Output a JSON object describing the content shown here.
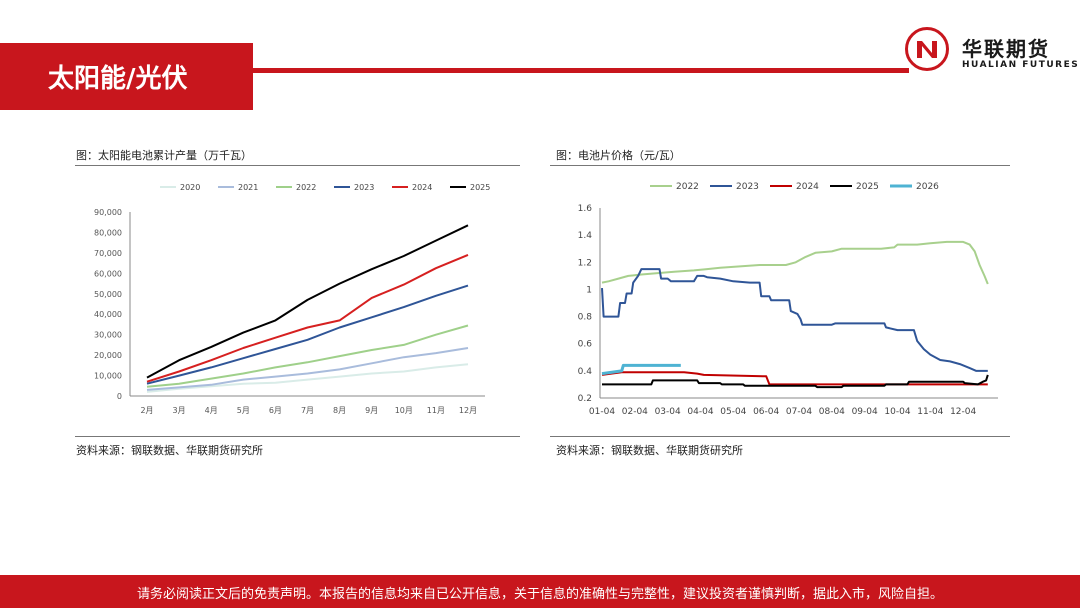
{
  "header": {
    "title": "太阳能/光伏",
    "logo_cn": "华联期货",
    "logo_en": "HUALIAN FUTURES",
    "logo_glyph": "N"
  },
  "left": {
    "title": "图：太阳能电池累计产量（万千瓦）",
    "source": "资料来源：钢联数据、华联期货研究所"
  },
  "right": {
    "title": "图：电池片价格（元/瓦）",
    "source": "资料来源：钢联数据、华联期货研究所"
  },
  "footer": {
    "disclaimer": "请务必阅读正文后的免责声明。本报告的信息均来自已公开信息，关于信息的准确性与完整性，建议投资者谨慎判断，据此入市，风险自担。"
  },
  "chart_data": [
    {
      "type": "line",
      "title": "图：太阳能电池累计产量（万千瓦）",
      "categories": [
        "2月",
        "3月",
        "4月",
        "5月",
        "6月",
        "7月",
        "8月",
        "9月",
        "10月",
        "11月",
        "12月"
      ],
      "ylim": [
        0,
        90000
      ],
      "yticks": [
        0,
        10000,
        20000,
        30000,
        40000,
        50000,
        60000,
        70000,
        80000,
        90000
      ],
      "ytick_labels": [
        "0",
        "10,000",
        "20,000",
        "30,000",
        "40,000",
        "50,000",
        "60,000",
        "70,000",
        "80,000",
        "90,000"
      ],
      "legend_position": "top",
      "series": [
        {
          "name": "2020",
          "color": "#d9ece8",
          "values": [
            2000,
            3500,
            4800,
            6000,
            6500,
            8000,
            9500,
            11000,
            12000,
            14000,
            15500
          ]
        },
        {
          "name": "2021",
          "color": "#a9bcdc",
          "values": [
            3000,
            4200,
            5500,
            8000,
            9500,
            11000,
            13000,
            16000,
            19000,
            21000,
            23500
          ]
        },
        {
          "name": "2022",
          "color": "#9fd08a",
          "values": [
            4500,
            6000,
            8500,
            11000,
            14000,
            16500,
            19500,
            22500,
            25000,
            30000,
            34500
          ]
        },
        {
          "name": "2023",
          "color": "#2f5597",
          "values": [
            6000,
            10000,
            14000,
            18500,
            23000,
            27500,
            33500,
            38500,
            43500,
            49000,
            54000
          ]
        },
        {
          "name": "2024",
          "color": "#d62020",
          "values": [
            7000,
            12000,
            17500,
            23500,
            28500,
            33500,
            37000,
            48000,
            54500,
            62500,
            69000
          ]
        },
        {
          "name": "2025",
          "color": "#000000",
          "values": [
            9000,
            17500,
            24000,
            31000,
            37000,
            47000,
            55000,
            62000,
            68500,
            76000,
            83500
          ]
        }
      ]
    },
    {
      "type": "line",
      "title": "图：电池片价格（元/瓦）",
      "x_categories": [
        "01-04",
        "02-04",
        "03-04",
        "04-04",
        "05-04",
        "06-04",
        "07-04",
        "08-04",
        "09-04",
        "10-04",
        "11-04",
        "12-04"
      ],
      "ylim": [
        0.2,
        1.6
      ],
      "yticks": [
        0.2,
        0.4,
        0.6,
        0.8,
        1.0,
        1.2,
        1.4,
        1.6
      ],
      "ytick_labels": [
        "0.2",
        "0.4",
        "0.6",
        "0.8",
        "1",
        "1.2",
        "1.4",
        "1.6"
      ],
      "legend_position": "top",
      "series": [
        {
          "name": "2022",
          "color": "#a8d08d",
          "points": [
            [
              0,
              1.05
            ],
            [
              0.2,
              1.06
            ],
            [
              0.5,
              1.08
            ],
            [
              0.8,
              1.1
            ],
            [
              1.2,
              1.11
            ],
            [
              1.7,
              1.12
            ],
            [
              2.2,
              1.13
            ],
            [
              2.8,
              1.14
            ],
            [
              3.2,
              1.15
            ],
            [
              3.6,
              1.16
            ],
            [
              4.2,
              1.17
            ],
            [
              4.8,
              1.18
            ],
            [
              5.2,
              1.18
            ],
            [
              5.6,
              1.18
            ],
            [
              5.9,
              1.2
            ],
            [
              6.2,
              1.24
            ],
            [
              6.5,
              1.27
            ],
            [
              7.0,
              1.28
            ],
            [
              7.3,
              1.3
            ],
            [
              8.0,
              1.3
            ],
            [
              8.5,
              1.3
            ],
            [
              8.9,
              1.31
            ],
            [
              9.0,
              1.33
            ],
            [
              9.6,
              1.33
            ],
            [
              10.0,
              1.34
            ],
            [
              10.5,
              1.35
            ],
            [
              11.0,
              1.35
            ],
            [
              11.2,
              1.33
            ],
            [
              11.35,
              1.28
            ],
            [
              11.5,
              1.18
            ],
            [
              11.65,
              1.1
            ],
            [
              11.75,
              1.04
            ]
          ]
        },
        {
          "name": "2023",
          "color": "#2f5597",
          "points": [
            [
              0,
              1.01
            ],
            [
              0.05,
              0.8
            ],
            [
              0.5,
              0.8
            ],
            [
              0.55,
              0.9
            ],
            [
              0.7,
              0.9
            ],
            [
              0.75,
              0.97
            ],
            [
              0.9,
              0.97
            ],
            [
              0.95,
              1.05
            ],
            [
              1.1,
              1.1
            ],
            [
              1.2,
              1.15
            ],
            [
              1.75,
              1.15
            ],
            [
              1.8,
              1.08
            ],
            [
              2.0,
              1.08
            ],
            [
              2.1,
              1.06
            ],
            [
              2.8,
              1.06
            ],
            [
              2.9,
              1.1
            ],
            [
              3.1,
              1.1
            ],
            [
              3.2,
              1.09
            ],
            [
              3.6,
              1.08
            ],
            [
              4.0,
              1.06
            ],
            [
              4.5,
              1.05
            ],
            [
              4.8,
              1.05
            ],
            [
              4.85,
              0.95
            ],
            [
              5.1,
              0.95
            ],
            [
              5.15,
              0.92
            ],
            [
              5.7,
              0.92
            ],
            [
              5.75,
              0.84
            ],
            [
              5.95,
              0.82
            ],
            [
              6.05,
              0.78
            ],
            [
              6.1,
              0.74
            ],
            [
              7.0,
              0.74
            ],
            [
              7.1,
              0.75
            ],
            [
              8.0,
              0.75
            ],
            [
              8.6,
              0.75
            ],
            [
              8.65,
              0.72
            ],
            [
              9.0,
              0.7
            ],
            [
              9.5,
              0.7
            ],
            [
              9.6,
              0.62
            ],
            [
              9.8,
              0.56
            ],
            [
              10.0,
              0.52
            ],
            [
              10.3,
              0.48
            ],
            [
              10.6,
              0.47
            ],
            [
              10.9,
              0.45
            ],
            [
              11.2,
              0.42
            ],
            [
              11.4,
              0.4
            ],
            [
              11.75,
              0.4
            ]
          ]
        },
        {
          "name": "2024",
          "color": "#c00000",
          "points": [
            [
              0,
              0.37
            ],
            [
              0.6,
              0.39
            ],
            [
              2.5,
              0.39
            ],
            [
              2.9,
              0.38
            ],
            [
              3.1,
              0.37
            ],
            [
              5.0,
              0.36
            ],
            [
              5.1,
              0.3
            ],
            [
              11.75,
              0.3
            ]
          ]
        },
        {
          "name": "2025",
          "color": "#000000",
          "points": [
            [
              0,
              0.3
            ],
            [
              1.5,
              0.3
            ],
            [
              1.55,
              0.33
            ],
            [
              2.9,
              0.33
            ],
            [
              2.95,
              0.31
            ],
            [
              3.6,
              0.31
            ],
            [
              3.65,
              0.3
            ],
            [
              4.3,
              0.3
            ],
            [
              4.35,
              0.29
            ],
            [
              6.5,
              0.29
            ],
            [
              6.55,
              0.28
            ],
            [
              7.3,
              0.28
            ],
            [
              7.35,
              0.29
            ],
            [
              8.6,
              0.29
            ],
            [
              8.65,
              0.3
            ],
            [
              9.3,
              0.3
            ],
            [
              9.35,
              0.32
            ],
            [
              11.0,
              0.32
            ],
            [
              11.05,
              0.31
            ],
            [
              11.45,
              0.3
            ],
            [
              11.6,
              0.32
            ],
            [
              11.7,
              0.33
            ],
            [
              11.75,
              0.37
            ]
          ]
        },
        {
          "name": "2026",
          "color": "#4eb3d3",
          "points": [
            [
              0,
              0.38
            ],
            [
              0.6,
              0.4
            ],
            [
              0.65,
              0.44
            ],
            [
              2.4,
              0.44
            ]
          ]
        }
      ]
    }
  ]
}
